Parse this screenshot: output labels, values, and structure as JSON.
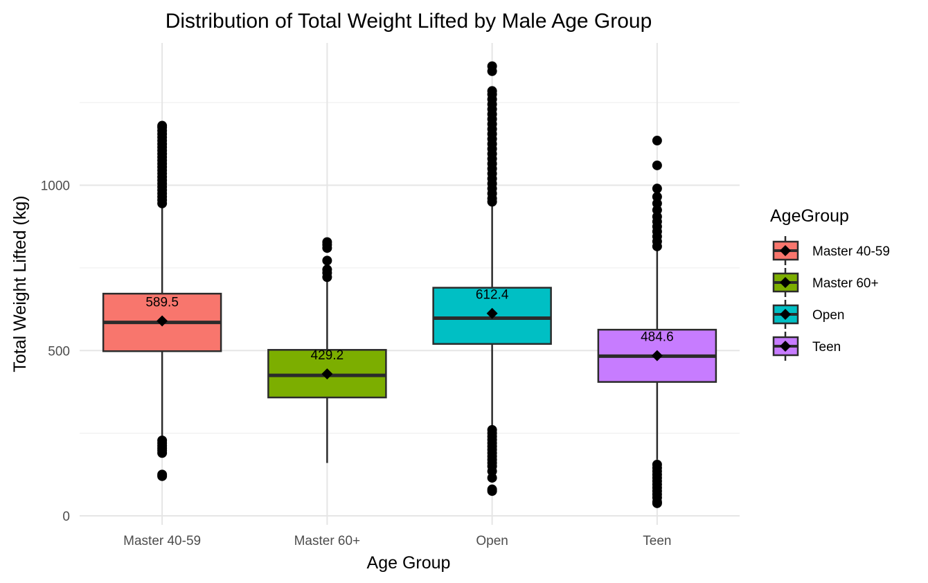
{
  "chart_data": {
    "type": "boxplot",
    "title": "Distribution of Total Weight Lifted by Male Age Group",
    "xlabel": "Age Group",
    "ylabel": "Total Weight Lifted (kg)",
    "ylim": [
      0,
      1350
    ],
    "yticks": [
      0,
      500,
      1000
    ],
    "grid": true,
    "legend": {
      "title": "AgeGroup",
      "placement": "right"
    },
    "categories": [
      "Master 40-59",
      "Master 60+",
      "Open",
      "Teen"
    ],
    "colors": [
      "#F8766D",
      "#7CAE00",
      "#00BFC4",
      "#C77CFF"
    ],
    "series": [
      {
        "name": "Master 40-59",
        "q1": 498,
        "median": 585,
        "q3": 672,
        "whisker_low": 235,
        "whisker_high": 935,
        "mean": 589.5,
        "mean_label": "589.5",
        "outliers": [
          120,
          125,
          190,
          198,
          205,
          212,
          220,
          228,
          945,
          955,
          965,
          975,
          985,
          995,
          1005,
          1015,
          1025,
          1035,
          1045,
          1055,
          1065,
          1075,
          1085,
          1095,
          1105,
          1115,
          1125,
          1135,
          1145,
          1155,
          1165,
          1175,
          1180
        ]
      },
      {
        "name": "Master 60+",
        "q1": 358,
        "median": 425,
        "q3": 502,
        "whisker_low": 160,
        "whisker_high": 712,
        "mean": 429.2,
        "mean_label": "429.2",
        "outliers": [
          722,
          735,
          745,
          772,
          810,
          820,
          828
        ]
      },
      {
        "name": "Open",
        "q1": 520,
        "median": 598,
        "q3": 690,
        "whisker_low": 268,
        "whisker_high": 942,
        "mean": 612.4,
        "mean_label": "612.4",
        "outliers": [
          75,
          80,
          115,
          135,
          150,
          160,
          170,
          180,
          190,
          200,
          210,
          220,
          230,
          240,
          250,
          260,
          950,
          960,
          975,
          990,
          1005,
          1020,
          1035,
          1050,
          1065,
          1080,
          1095,
          1110,
          1125,
          1140,
          1155,
          1170,
          1185,
          1200,
          1215,
          1230,
          1245,
          1260,
          1275,
          1285,
          1345,
          1360
        ]
      },
      {
        "name": "Teen",
        "q1": 405,
        "median": 483,
        "q3": 563,
        "whisker_low": 170,
        "whisker_high": 802,
        "mean": 484.6,
        "mean_label": "484.6",
        "outliers": [
          38,
          42,
          55,
          65,
          75,
          85,
          95,
          105,
          115,
          125,
          135,
          145,
          155,
          815,
          830,
          845,
          860,
          875,
          890,
          905,
          925,
          945,
          965,
          990,
          1060,
          1135
        ]
      }
    ]
  }
}
